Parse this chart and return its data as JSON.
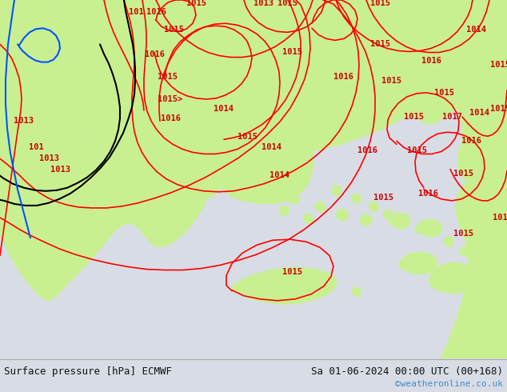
{
  "title_left": "Surface pressure [hPa] ECMWF",
  "title_right": "Sa 01-06-2024 00:00 UTC (00+168)",
  "credit": "©weatheronline.co.uk",
  "sea_color": "#d8dde5",
  "land_color": "#c8f090",
  "contour_red": "#ff0000",
  "contour_black": "#000000",
  "contour_blue": "#0055ff",
  "label_red": "#cc0000",
  "footer_bg": "#e8e8e8",
  "label_fontsize": 7.5
}
